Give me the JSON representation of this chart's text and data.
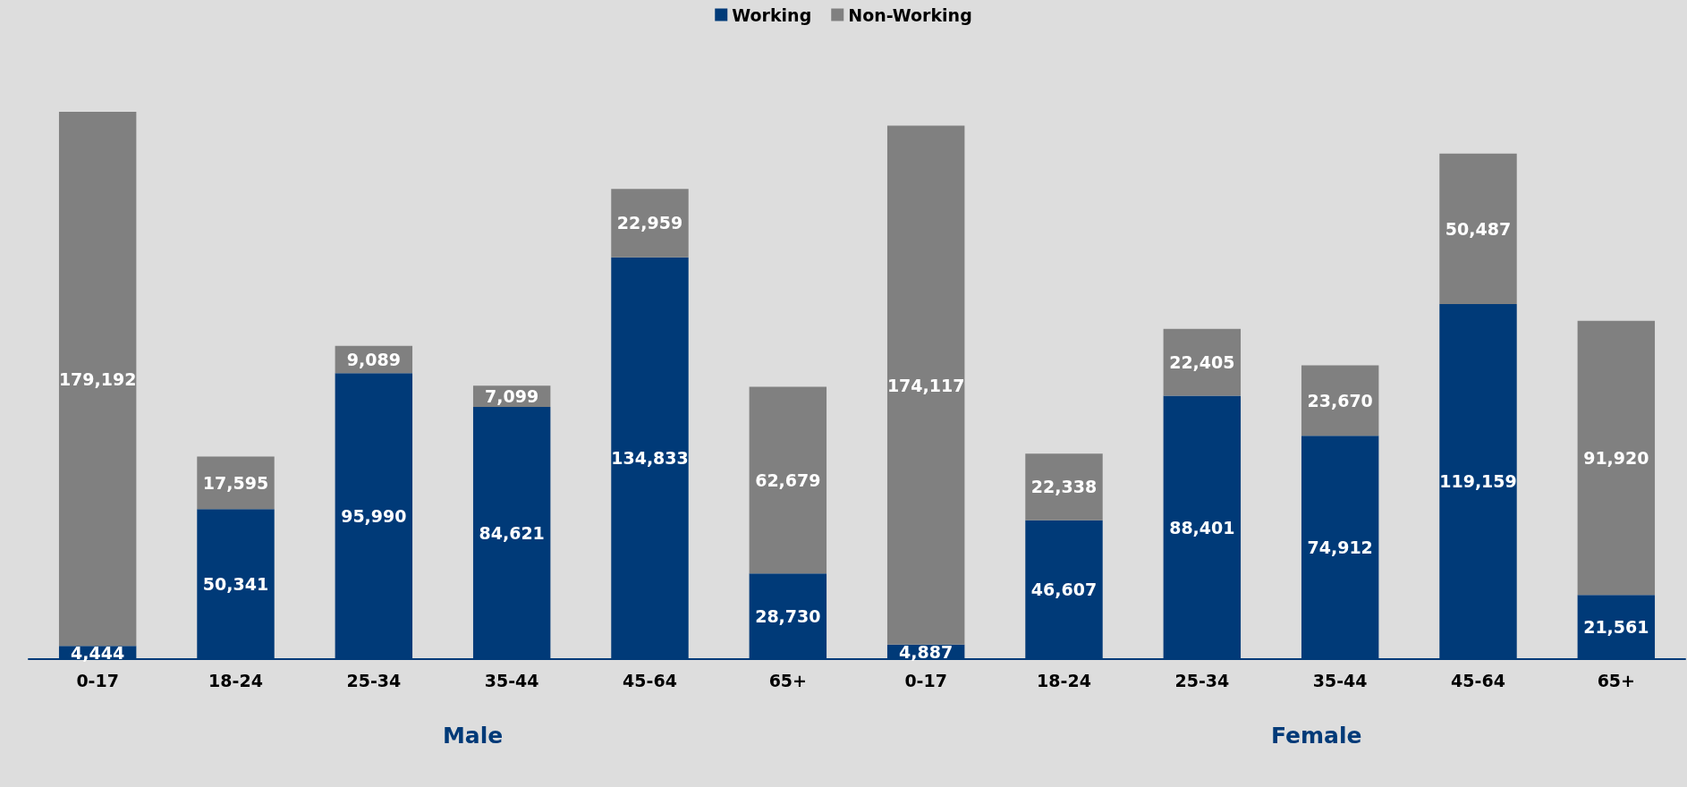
{
  "chart_data": {
    "type": "bar",
    "stacked": true,
    "legend": "top",
    "categories": [
      "0-17",
      "18-24",
      "25-34",
      "35-44",
      "45-64",
      "65+",
      "0-17",
      "18-24",
      "25-34",
      "35-44",
      "45-64",
      "65+"
    ],
    "series": [
      {
        "name": "Working",
        "color": "#003a78",
        "values": [
          4444,
          50341,
          95990,
          84621,
          134833,
          28730,
          4887,
          46607,
          88401,
          74912,
          119159,
          21561
        ],
        "value_labels": [
          "4,444",
          "50,341",
          "95,990",
          "84,621",
          "134,833",
          "28,730",
          "4,887",
          "46,607",
          "88,401",
          "74,912",
          "119,159",
          "21,561"
        ]
      },
      {
        "name": "Non-Working",
        "color": "#808080",
        "values": [
          179192,
          17595,
          9089,
          7099,
          22959,
          62679,
          174117,
          22338,
          22405,
          23670,
          50487,
          91920
        ],
        "value_labels": [
          "179,192",
          "17,595",
          "9,089",
          "7,099",
          "22,959",
          "62,679",
          "174,117",
          "22,338",
          "22,405",
          "23,670",
          "50,487",
          "91,920"
        ]
      }
    ],
    "annotations": [
      "Male",
      "Female"
    ]
  }
}
